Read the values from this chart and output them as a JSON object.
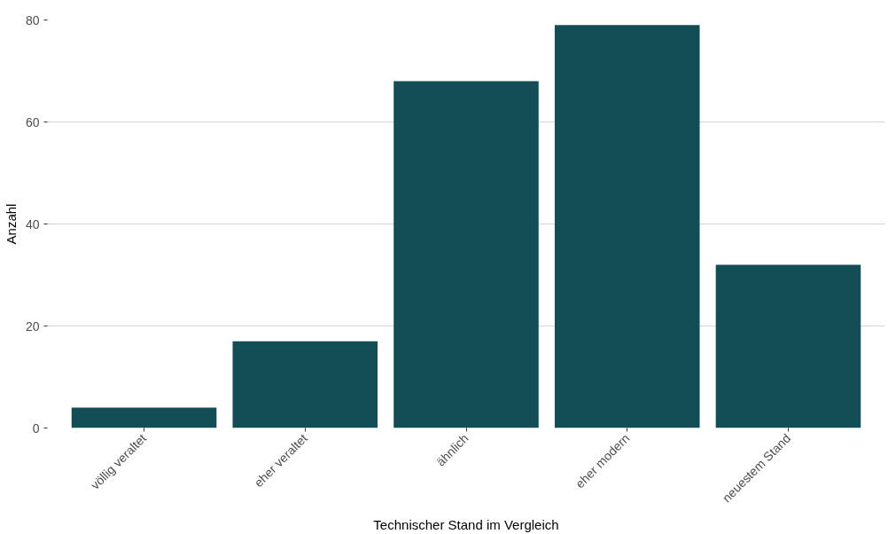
{
  "chart_data": {
    "type": "bar",
    "xlabel": "Technischer Stand im Vergleich",
    "ylabel": "Anzahl",
    "categories": [
      "völlig veraltet",
      "eher veraltet",
      "ähnlich",
      "eher modern",
      "neuestem Stand"
    ],
    "values": [
      4,
      17,
      68,
      79,
      32
    ],
    "color": "#134e56",
    "ylim": [
      0,
      80
    ],
    "yticks": [
      0,
      20,
      40,
      60,
      80
    ],
    "grid": "y"
  }
}
